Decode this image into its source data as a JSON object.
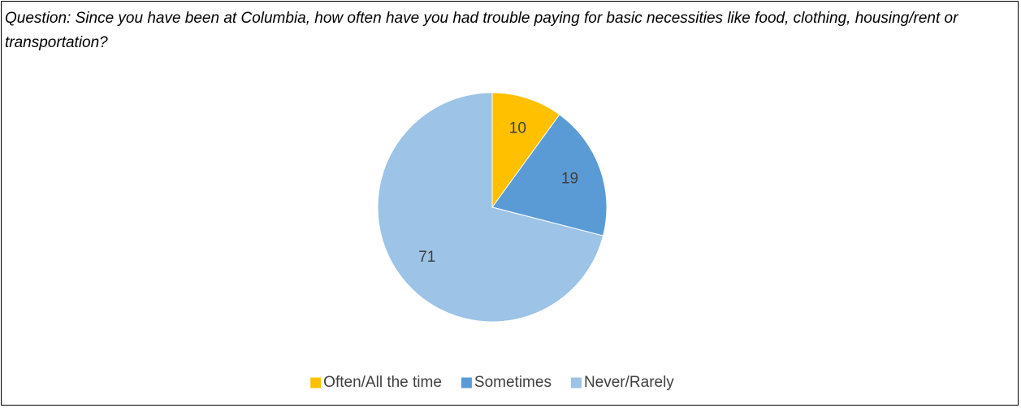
{
  "chart_data": {
    "type": "pie",
    "title": "Question: Since you have been at Columbia, how often have you had trouble paying for basic necessities like food, clothing, housing/rent or transportation?",
    "categories": [
      "Often/All the time",
      "Sometimes",
      "Never/Rarely"
    ],
    "values": [
      10,
      19,
      71
    ],
    "colors": [
      "#ffc000",
      "#5b9bd5",
      "#9dc3e6"
    ],
    "legend": "bottom"
  }
}
